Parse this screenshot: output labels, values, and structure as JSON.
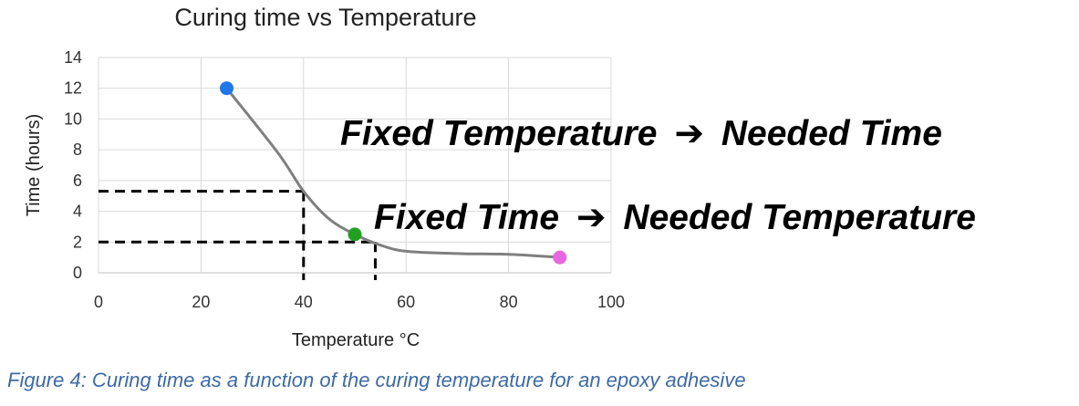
{
  "chart_data": {
    "type": "line",
    "title": "Curing time vs Temperature",
    "xlabel": "Temperature °C",
    "ylabel": "Time (hours)",
    "xlim": [
      0,
      100
    ],
    "ylim": [
      0,
      14
    ],
    "x_ticks": [
      "0",
      "20",
      "40",
      "60",
      "80",
      "100"
    ],
    "y_ticks": [
      "0",
      "2",
      "4",
      "6",
      "8",
      "10",
      "12",
      "14"
    ],
    "grid": true,
    "series": [
      {
        "curve": {
          "x": [
            25,
            35,
            40,
            45,
            50,
            55,
            60,
            70,
            80,
            90
          ],
          "y": [
            12,
            7.8,
            5.3,
            3.5,
            2.5,
            1.8,
            1.4,
            1.25,
            1.2,
            1.0
          ]
        },
        "points": [
          {
            "x": 25,
            "y": 12,
            "color": "#1f77e8"
          },
          {
            "x": 50,
            "y": 2.5,
            "color": "#22a022"
          },
          {
            "x": 90,
            "y": 1.0,
            "color": "#e867e0"
          }
        ]
      }
    ],
    "reference_lines": [
      {
        "x": 40,
        "y": 5.3
      },
      {
        "x": 54,
        "y": 2.0
      }
    ],
    "annotations": [
      {
        "before": "Fixed Temperature",
        "after": "Needed Time"
      },
      {
        "before": "Fixed Time",
        "after": "Needed Temperature"
      }
    ],
    "arrow_glyph": "➔"
  },
  "caption": "Figure 4: Curing time as a function of the curing temperature for an epoxy adhesive"
}
